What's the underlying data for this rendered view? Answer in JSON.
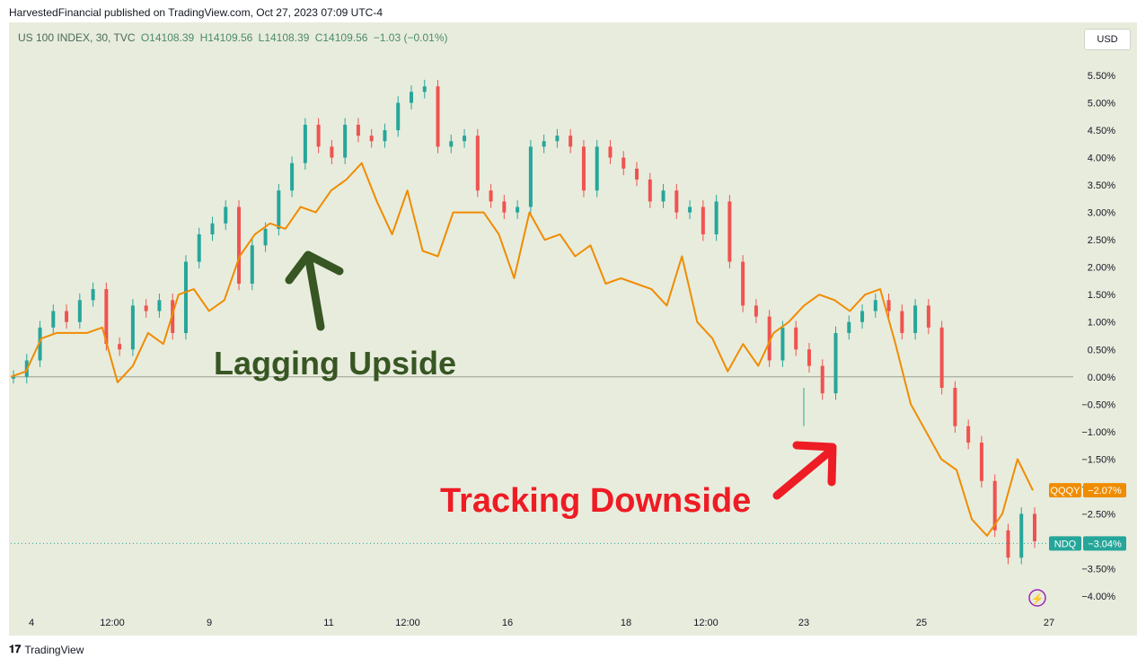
{
  "header": {
    "published_line": "HarvestedFinancial published on TradingView.com, Oct 27, 2023 07:09 UTC-4"
  },
  "legend": {
    "symbol": "US 100 INDEX, 30, TVC",
    "open": "O14108.39",
    "high": "H14109.56",
    "low": "L14108.39",
    "close": "C14109.56",
    "change": "−1.03 (−0.01%)"
  },
  "currency_button": "USD",
  "footer": {
    "brand": "TradingView"
  },
  "colors": {
    "background": "#e8ecdd",
    "up_candle": "#26a69a",
    "down_candle": "#ef5350",
    "qqqy_line": "#f08c00",
    "green_annotation": "#375623",
    "red_annotation": "#ee1c24",
    "ndq_badge": "#26a69a",
    "qqqy_badge": "#f08c00"
  },
  "chart_data": {
    "type": "line",
    "y_unit": "percent change",
    "ylim": [
      -4.2,
      5.8
    ],
    "y_ticks": [
      "5.50%",
      "5.00%",
      "4.50%",
      "4.00%",
      "3.50%",
      "3.00%",
      "2.50%",
      "2.00%",
      "1.50%",
      "1.00%",
      "0.50%",
      "0.00%",
      "-0.50%",
      "-1.00%",
      "-1.50%",
      "-2.00%",
      "-2.50%",
      "-3.50%",
      "-4.00%"
    ],
    "x_ticks": [
      "4",
      "12:00",
      "9",
      "11",
      "12:00",
      "16",
      "18",
      "12:00",
      "23",
      "25",
      "27"
    ],
    "series": [
      {
        "name": "NDQ",
        "style": "candlestick",
        "last_label": "-3.04%",
        "values": [
          0.0,
          0.3,
          0.9,
          1.2,
          1.0,
          1.4,
          1.6,
          0.6,
          0.5,
          1.3,
          1.2,
          1.4,
          0.8,
          2.1,
          2.6,
          2.8,
          3.1,
          1.7,
          2.4,
          2.7,
          3.4,
          3.9,
          4.6,
          4.2,
          4.0,
          4.6,
          4.4,
          4.3,
          4.5,
          5.0,
          5.2,
          5.3,
          4.2,
          4.3,
          4.4,
          3.4,
          3.2,
          3.0,
          3.1,
          4.2,
          4.3,
          4.4,
          4.2,
          3.4,
          4.2,
          4.0,
          3.8,
          3.6,
          3.2,
          3.4,
          3.0,
          3.1,
          2.6,
          3.2,
          2.1,
          1.3,
          1.1,
          0.3,
          0.9,
          0.5,
          0.2,
          -0.3,
          0.8,
          1.0,
          1.2,
          1.4,
          1.2,
          0.8,
          1.3,
          0.9,
          -0.2,
          -0.9,
          -1.2,
          -1.9,
          -2.8,
          -3.3,
          -2.5,
          -3.0
        ]
      },
      {
        "name": "QQQY",
        "style": "line",
        "last_label": "-2.07%",
        "values": [
          0.0,
          0.1,
          0.7,
          0.8,
          0.8,
          0.8,
          0.9,
          -0.1,
          0.2,
          0.8,
          0.6,
          1.5,
          1.6,
          1.2,
          1.4,
          2.2,
          2.6,
          2.8,
          2.7,
          3.1,
          3.0,
          3.4,
          3.6,
          3.9,
          3.2,
          2.6,
          3.4,
          2.3,
          2.2,
          3.0,
          3.0,
          3.0,
          2.6,
          1.8,
          3.0,
          2.5,
          2.6,
          2.2,
          2.4,
          1.7,
          1.8,
          1.7,
          1.6,
          1.3,
          2.2,
          1.0,
          0.7,
          0.1,
          0.6,
          0.2,
          0.8,
          1.0,
          1.3,
          1.5,
          1.4,
          1.2,
          1.5,
          1.6,
          0.6,
          -0.5,
          -1.0,
          -1.5,
          -1.7,
          -2.6,
          -2.9,
          -2.5,
          -1.5,
          -2.07
        ]
      }
    ],
    "annotations": [
      {
        "text": "Lagging Upside",
        "color": "#375623"
      },
      {
        "text": "Tracking Downside",
        "color": "#ee1c24"
      }
    ]
  }
}
